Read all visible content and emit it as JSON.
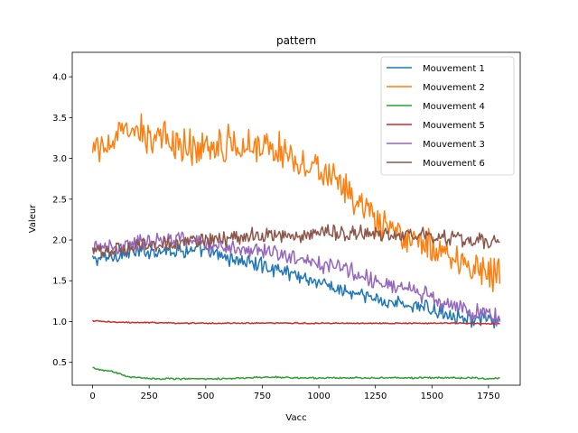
{
  "chart_data": {
    "type": "line",
    "title": "pattern",
    "xlabel": "Vacc",
    "ylabel": "Valeur",
    "xlim": [
      -90,
      1890
    ],
    "ylim": [
      0.22,
      4.3
    ],
    "xticks": [
      "0",
      "250",
      "500",
      "750",
      "1000",
      "1250",
      "1500",
      "1750"
    ],
    "yticks": [
      "0.5",
      "1.0",
      "1.5",
      "2.0",
      "2.5",
      "3.0",
      "3.5",
      "4.0"
    ],
    "grid": false,
    "legend_position": "top-right",
    "colors": {
      "Mouvement 1": "#1f77b4",
      "Mouvement 2": "#ff7f0e",
      "Mouvement 4": "#2ca02c",
      "Mouvement 5": "#d62728",
      "Mouvement 3": "#9467bd",
      "Mouvement 6": "#8c564b"
    },
    "series": [
      {
        "name": "Mouvement 1",
        "x": [
          0,
          100,
          200,
          300,
          400,
          500,
          600,
          700,
          800,
          900,
          1000,
          1100,
          1200,
          1300,
          1400,
          1500,
          1600,
          1700,
          1800
        ],
        "y": [
          1.75,
          1.82,
          1.85,
          1.88,
          1.88,
          1.85,
          1.78,
          1.72,
          1.65,
          1.58,
          1.48,
          1.38,
          1.3,
          1.25,
          1.2,
          1.15,
          1.08,
          1.02,
          1.0
        ],
        "noise": 0.07
      },
      {
        "name": "Mouvement 2",
        "x": [
          0,
          100,
          200,
          300,
          400,
          500,
          600,
          700,
          800,
          900,
          1000,
          1100,
          1200,
          1300,
          1400,
          1500,
          1600,
          1700,
          1800
        ],
        "y": [
          3.05,
          3.25,
          3.32,
          3.25,
          3.15,
          3.15,
          3.18,
          3.2,
          3.12,
          3.02,
          2.85,
          2.65,
          2.35,
          2.1,
          2.0,
          1.92,
          1.8,
          1.65,
          1.6
        ],
        "noise": 0.16
      },
      {
        "name": "Mouvement 4",
        "x": [
          0,
          50,
          100,
          150,
          200,
          300,
          400,
          500,
          600,
          700,
          800,
          900,
          1000,
          1200,
          1400,
          1600,
          1800
        ],
        "y": [
          0.43,
          0.4,
          0.38,
          0.33,
          0.31,
          0.3,
          0.3,
          0.3,
          0.3,
          0.31,
          0.32,
          0.31,
          0.31,
          0.31,
          0.31,
          0.31,
          0.3
        ],
        "noise": 0.008
      },
      {
        "name": "Mouvement 5",
        "x": [
          0,
          50,
          100,
          200,
          400,
          600,
          800,
          1000,
          1200,
          1400,
          1600,
          1800
        ],
        "y": [
          1.01,
          1.0,
          0.99,
          0.99,
          0.98,
          0.98,
          0.98,
          0.98,
          0.98,
          0.98,
          0.98,
          0.97
        ],
        "noise": 0.006
      },
      {
        "name": "Mouvement 3",
        "x": [
          0,
          100,
          200,
          300,
          400,
          500,
          600,
          700,
          800,
          900,
          1000,
          1100,
          1200,
          1300,
          1400,
          1500,
          1600,
          1700,
          1800
        ],
        "y": [
          1.88,
          1.92,
          1.98,
          2.0,
          2.0,
          1.95,
          1.92,
          1.88,
          1.85,
          1.8,
          1.72,
          1.65,
          1.55,
          1.45,
          1.38,
          1.3,
          1.2,
          1.1,
          1.05
        ],
        "noise": 0.08
      },
      {
        "name": "Mouvement 6",
        "x": [
          0,
          100,
          200,
          300,
          400,
          500,
          600,
          700,
          800,
          900,
          1000,
          1100,
          1200,
          1300,
          1400,
          1500,
          1600,
          1700,
          1800
        ],
        "y": [
          1.85,
          1.88,
          1.92,
          1.95,
          1.98,
          2.0,
          2.02,
          2.05,
          2.05,
          2.05,
          2.08,
          2.1,
          2.08,
          2.05,
          2.05,
          2.05,
          2.02,
          2.0,
          1.95
        ],
        "noise": 0.07
      }
    ]
  }
}
